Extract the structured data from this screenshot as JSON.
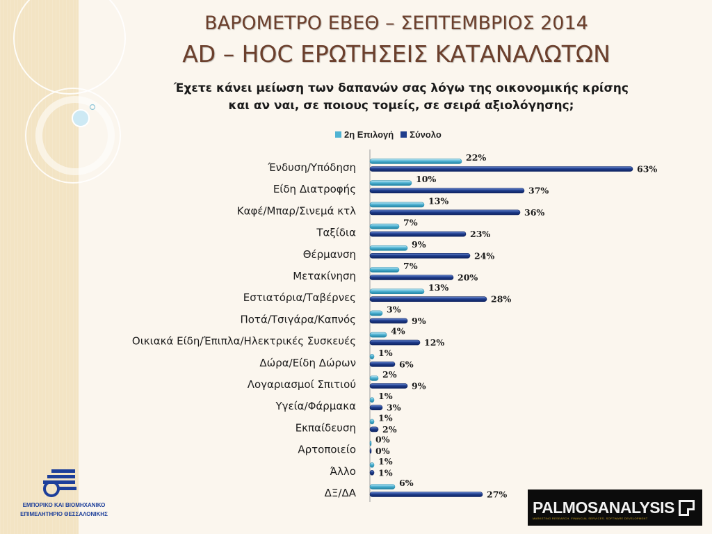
{
  "header": {
    "title_line1": "ΒΑΡΟΜΕΤΡΟ ΕΒΕΘ – ΣΕΠΤΕΜΒΡΙΟΣ 2014",
    "title_line2": "AD – HOC ΕΡΩΤΗΣΕΙΣ ΚΑΤΑΝΑΛΩΤΩΝ"
  },
  "question": {
    "line1": "Έχετε κάνει μείωση των δαπανών σας λόγω της οικονομικής κρίσης",
    "line2": "και αν ναι, σε ποιους τομείς, σε σειρά αξιολόγησης;"
  },
  "chart_data": {
    "type": "bar",
    "orientation": "horizontal",
    "categories": [
      "Ένδυση/Υπόδηση",
      "Είδη Διατροφής",
      "Καφέ/Μπαρ/Σινεμά κτλ",
      "Ταξίδια",
      "Θέρμανση",
      "Μετακίνηση",
      "Εστιατόρια/Ταβέρνες",
      "Ποτά/Τσιγάρα/Καπνός",
      "Οικιακά Είδη/Έπιπλα/Ηλεκτρικές Συσκευές",
      "Δώρα/Είδη Δώρων",
      "Λογαριασμοί Σπιτιού",
      "Υγεία/Φάρμακα",
      "Εκπαίδευση",
      "Αρτοποιείο",
      "Άλλο",
      "ΔΞ/ΔΑ"
    ],
    "series": [
      {
        "name": "2η Επιλογή",
        "color": "#4fb3d3",
        "values": [
          22,
          10,
          13,
          7,
          9,
          7,
          13,
          3,
          4,
          1,
          2,
          1,
          1,
          0,
          1,
          6
        ]
      },
      {
        "name": "Σύνολο",
        "color": "#1f3d8c",
        "values": [
          63,
          37,
          36,
          23,
          24,
          20,
          28,
          9,
          12,
          6,
          9,
          3,
          2,
          0,
          1,
          27
        ]
      }
    ],
    "value_suffix": "%",
    "xlim": [
      0,
      70
    ],
    "legend": "top-center",
    "grid": false
  },
  "logos": {
    "left_line1": "ΕΜΠΟΡΙΚΟ ΚΑΙ ΒΙΟΜΗΧΑΝΙΚΟ",
    "left_line2": "ΕΠΙΜΕΛΗΤΗΡΙΟ ΘΕΣΣΑΛΟΝΙΚΗΣ",
    "right_brand": "PALMOSANALYSIS",
    "right_tagline": "MARKETING RESEARCH. FINANCIAL SERVICES. SOFTWARE DEVELOPMENT"
  }
}
